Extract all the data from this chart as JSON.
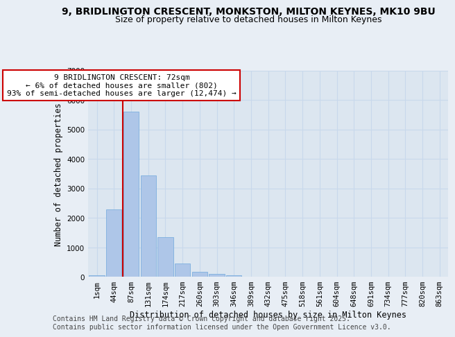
{
  "title_line1": "9, BRIDLINGTON CRESCENT, MONKSTON, MILTON KEYNES, MK10 9BU",
  "title_line2": "Size of property relative to detached houses in Milton Keynes",
  "xlabel": "Distribution of detached houses by size in Milton Keynes",
  "ylabel": "Number of detached properties",
  "categories": [
    "1sqm",
    "44sqm",
    "87sqm",
    "131sqm",
    "174sqm",
    "217sqm",
    "260sqm",
    "303sqm",
    "346sqm",
    "389sqm",
    "432sqm",
    "475sqm",
    "518sqm",
    "561sqm",
    "604sqm",
    "648sqm",
    "691sqm",
    "734sqm",
    "777sqm",
    "820sqm",
    "863sqm"
  ],
  "values": [
    60,
    2300,
    5600,
    3450,
    1350,
    450,
    175,
    100,
    50,
    5,
    3,
    1,
    0,
    0,
    0,
    0,
    0,
    0,
    0,
    0,
    0
  ],
  "bar_color": "#aec6e8",
  "bar_edgecolor": "#6fa8dc",
  "vline_color": "#cc0000",
  "vline_xindex": 1.5,
  "annotation_text": "9 BRIDLINGTON CRESCENT: 72sqm\n← 6% of detached houses are smaller (802)\n93% of semi-detached houses are larger (12,474) →",
  "annotation_box_facecolor": "#ffffff",
  "annotation_box_edgecolor": "#cc0000",
  "footer_text": "Contains HM Land Registry data © Crown copyright and database right 2025.\nContains public sector information licensed under the Open Government Licence v3.0.",
  "background_color": "#e8eef5",
  "plot_bg_color": "#dce6f0",
  "grid_color": "#c8d8ec",
  "ylim": [
    0,
    7000
  ],
  "yticks": [
    0,
    1000,
    2000,
    3000,
    4000,
    5000,
    6000,
    7000
  ],
  "title_fontsize": 10,
  "subtitle_fontsize": 9,
  "axis_label_fontsize": 8.5,
  "tick_fontsize": 7.5,
  "annotation_fontsize": 8,
  "footer_fontsize": 7
}
